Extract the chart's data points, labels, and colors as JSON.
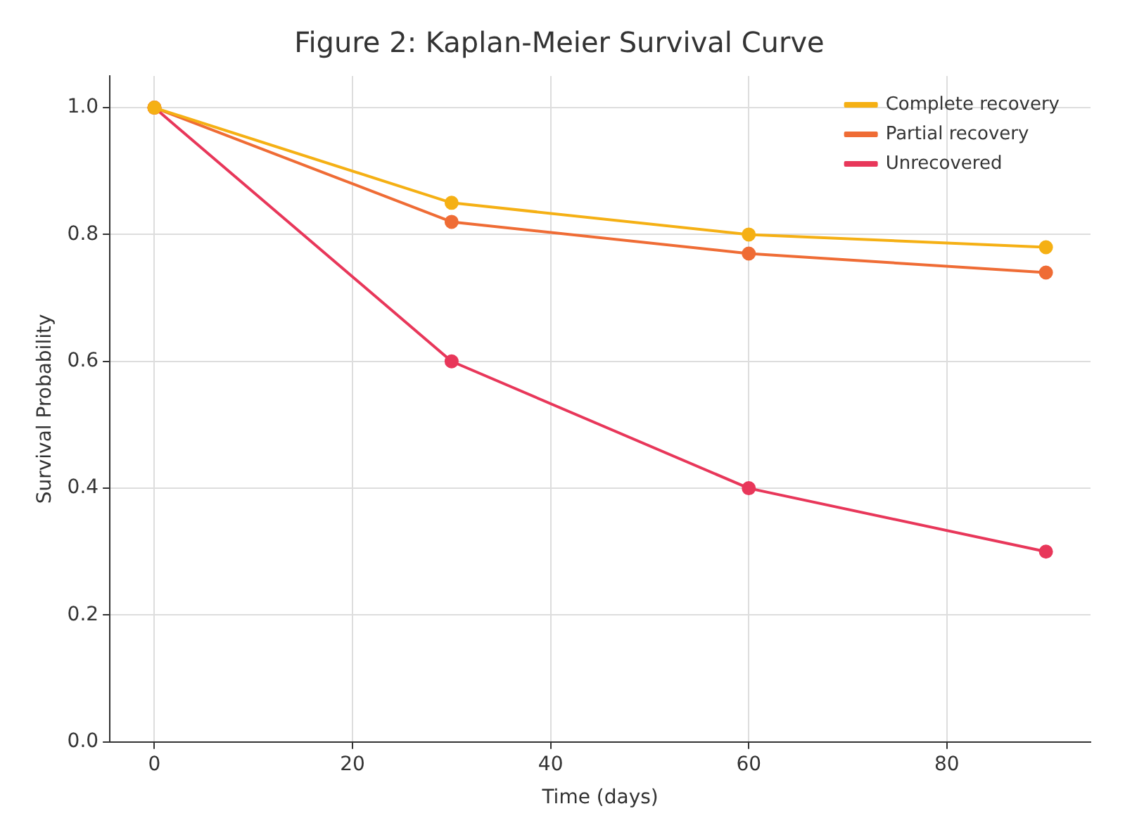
{
  "chart_data": {
    "type": "line",
    "title": "Figure 2: Kaplan-Meier Survival Curve",
    "xlabel": "Time (days)",
    "ylabel": "Survival Probability",
    "x": [
      0,
      30,
      60,
      90
    ],
    "series": [
      {
        "name": "Complete recovery",
        "color": "#f5b014",
        "values": [
          1.0,
          0.85,
          0.8,
          0.78
        ]
      },
      {
        "name": "Partial recovery",
        "color": "#ef6c35",
        "values": [
          1.0,
          0.82,
          0.77,
          0.74
        ]
      },
      {
        "name": "Unrecovered",
        "color": "#e8375a",
        "values": [
          1.0,
          0.6,
          0.4,
          0.3
        ]
      }
    ],
    "xlim": [
      -4.5,
      94.5
    ],
    "ylim": [
      0,
      1.05
    ],
    "xticks": [
      0,
      20,
      40,
      60,
      80
    ],
    "yticks": [
      {
        "value": 0,
        "label": "0.0"
      },
      {
        "value": 0.2,
        "label": "0.2"
      },
      {
        "value": 0.4,
        "label": "0.4"
      },
      {
        "value": 0.6,
        "label": "0.6"
      },
      {
        "value": 0.8,
        "label": "0.8"
      },
      {
        "value": 1.0,
        "label": "1.0"
      }
    ],
    "grid": true,
    "legend": "top right",
    "marker": "circle",
    "line_style": "solid"
  }
}
